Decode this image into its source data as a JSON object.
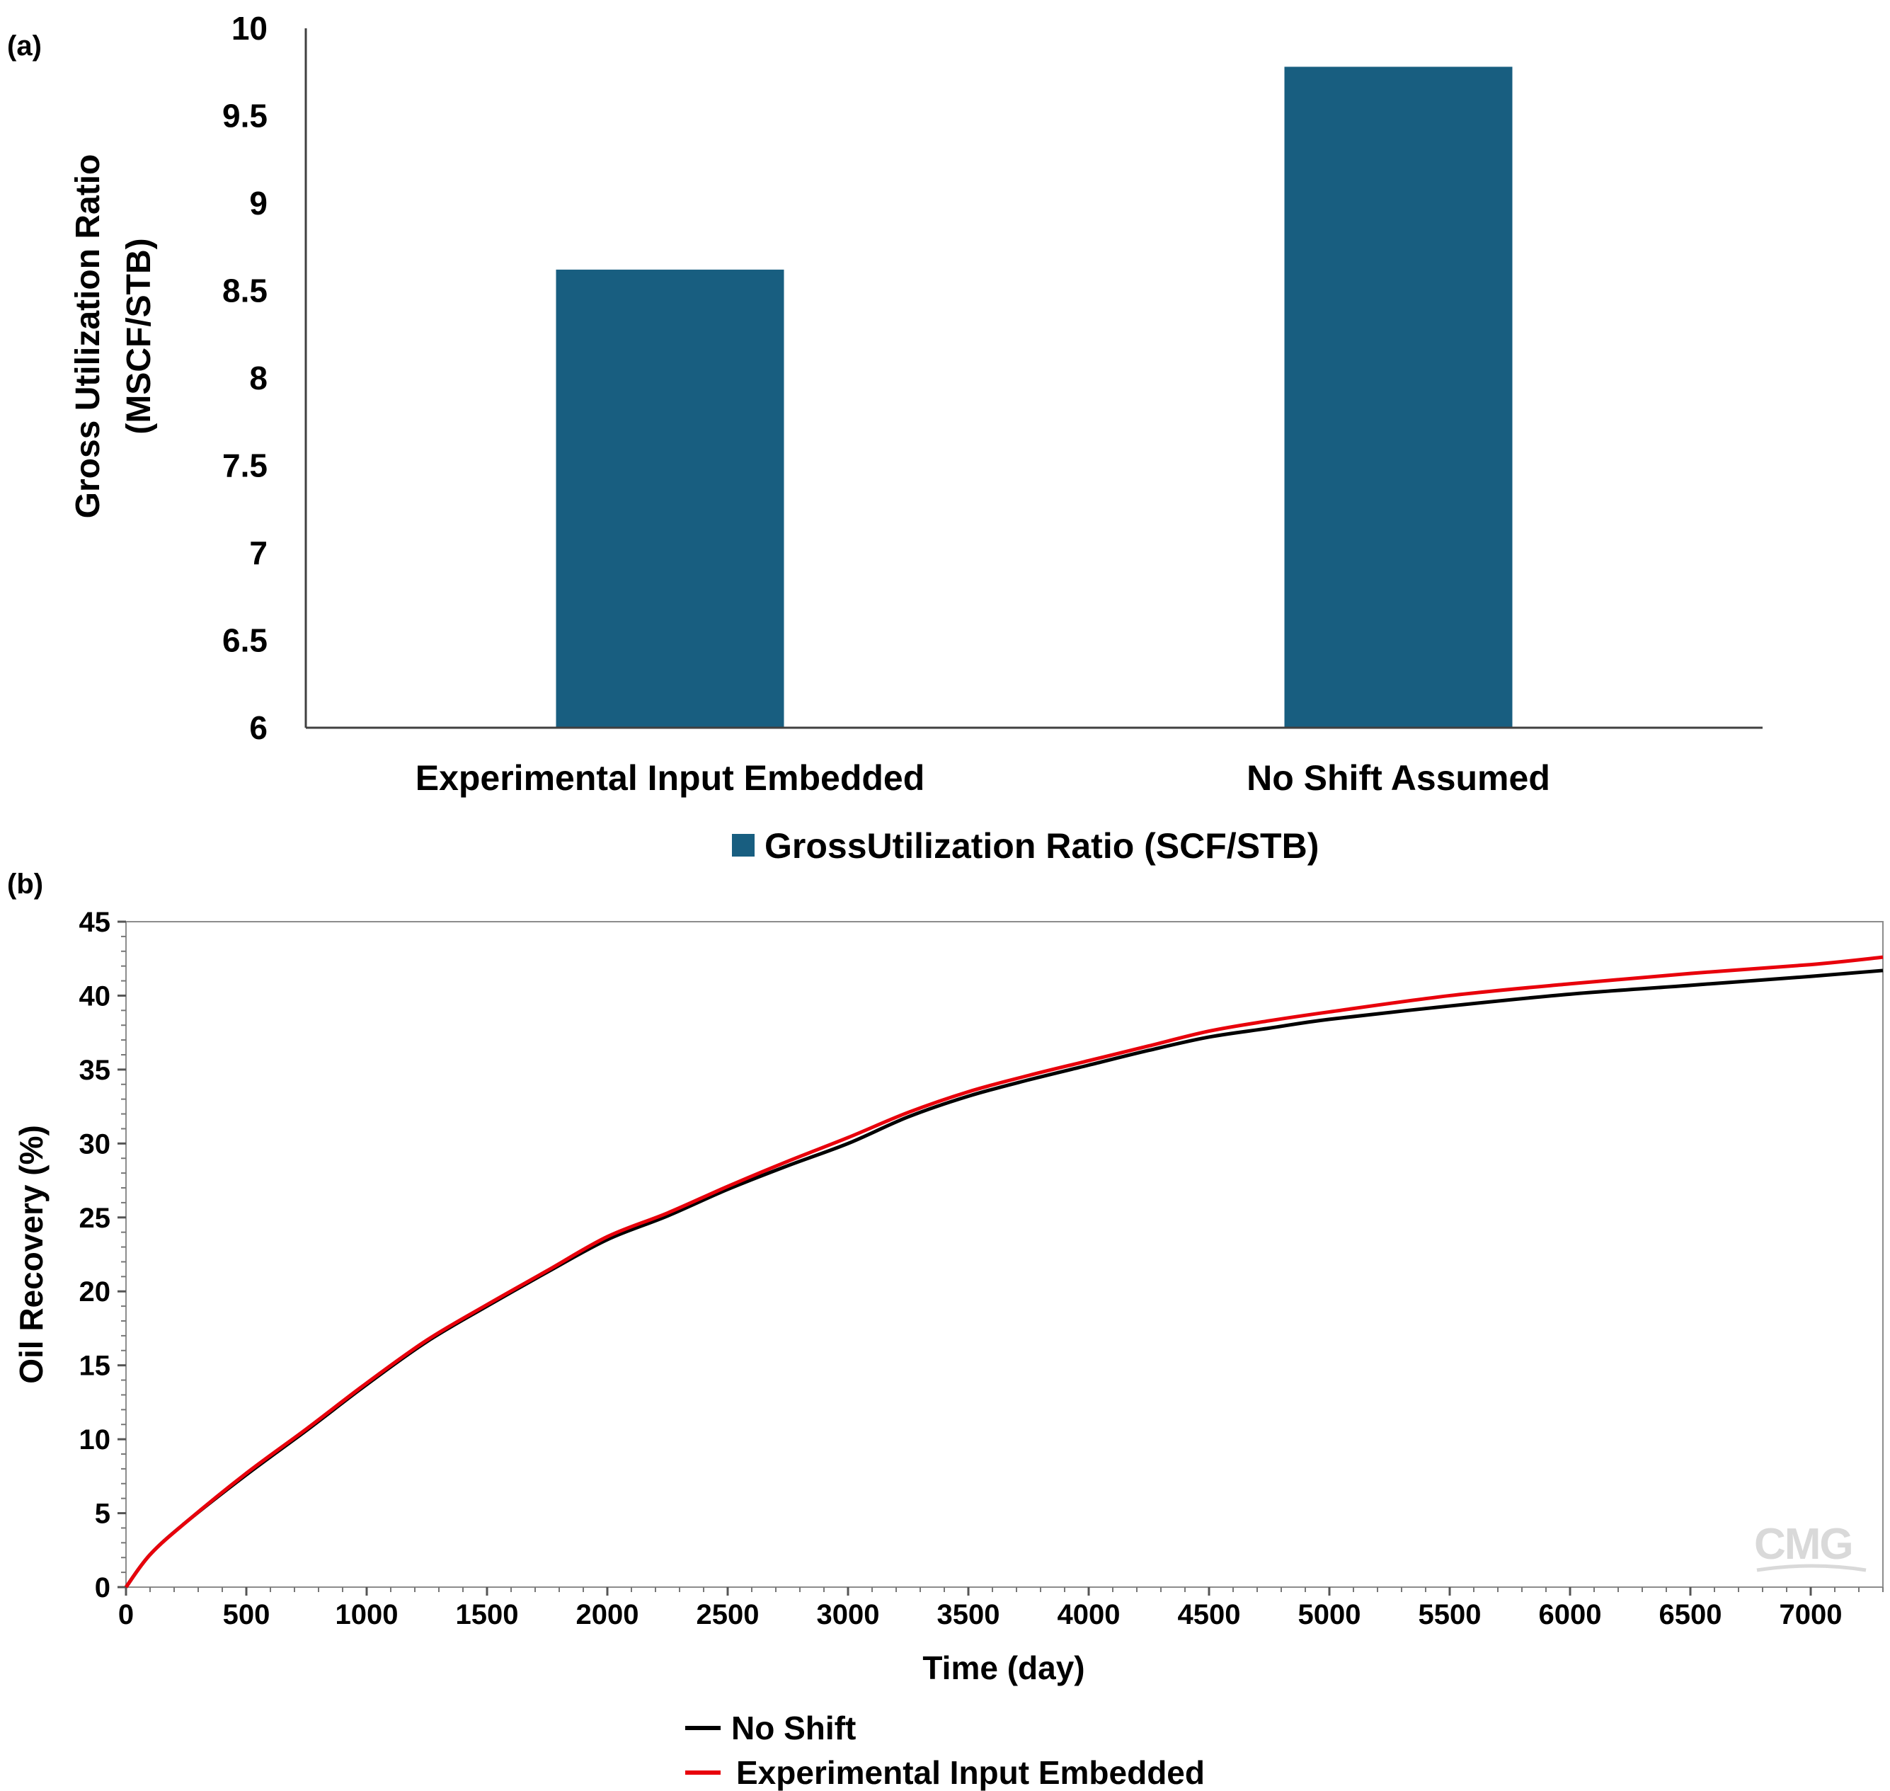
{
  "chart_data": [
    {
      "panel_label": "(a)",
      "type": "bar",
      "categories": [
        "Experimental Input Embedded",
        "No Shift Assumed"
      ],
      "series": [
        {
          "name": "GrossUtilization Ratio (SCF/STB)",
          "values": [
            8.62,
            9.78
          ],
          "color": "#185e80"
        }
      ],
      "ylabel_line1": "Gross Utilization Ratio",
      "ylabel_line2": "(MSCF/STB)",
      "xlabel": "",
      "ylim": [
        6,
        10
      ],
      "yticks": [
        "6",
        "6.5",
        "7",
        "7.5",
        "8",
        "8.5",
        "9",
        "9.5",
        "10"
      ],
      "grid": false,
      "legend_position": "bottom"
    },
    {
      "panel_label": "(b)",
      "type": "line",
      "xlabel": "Time (day)",
      "ylabel": "Oil Recovery (%)",
      "xlim": [
        0,
        7300
      ],
      "ylim": [
        0,
        45
      ],
      "xticks": [
        "0",
        "500",
        "1000",
        "1500",
        "2000",
        "2500",
        "3000",
        "3500",
        "4000",
        "4500",
        "5000",
        "5500",
        "6000",
        "6500",
        "7000"
      ],
      "yticks": [
        "0",
        "5",
        "10",
        "15",
        "20",
        "25",
        "30",
        "35",
        "40",
        "45"
      ],
      "grid": false,
      "legend_position": "bottom",
      "watermark": "CMG",
      "series": [
        {
          "name": "No Shift",
          "color": "#000000",
          "x": [
            0,
            100,
            250,
            500,
            750,
            1000,
            1250,
            1500,
            1750,
            2000,
            2250,
            2500,
            2750,
            3000,
            3250,
            3500,
            3750,
            4000,
            4250,
            4500,
            4750,
            5000,
            5500,
            6000,
            6500,
            7000,
            7300
          ],
          "y": [
            0,
            2.2,
            4.4,
            7.6,
            10.6,
            13.7,
            16.6,
            19.0,
            21.3,
            23.5,
            25.1,
            26.9,
            28.5,
            30.0,
            31.8,
            33.2,
            34.3,
            35.3,
            36.3,
            37.2,
            37.8,
            38.4,
            39.3,
            40.1,
            40.7,
            41.3,
            41.7
          ]
        },
        {
          "name": "Experimental Input Embedded",
          "color": "#e8000b",
          "x": [
            0,
            100,
            250,
            500,
            750,
            1000,
            1250,
            1500,
            1750,
            2000,
            2250,
            2500,
            2750,
            3000,
            3250,
            3500,
            3750,
            4000,
            4250,
            4500,
            4750,
            5000,
            5500,
            6000,
            6500,
            7000,
            7300
          ],
          "y": [
            0,
            2.2,
            4.4,
            7.7,
            10.7,
            13.8,
            16.7,
            19.1,
            21.4,
            23.7,
            25.3,
            27.1,
            28.8,
            30.4,
            32.1,
            33.5,
            34.6,
            35.6,
            36.6,
            37.6,
            38.3,
            38.9,
            40.0,
            40.8,
            41.5,
            42.1,
            42.6
          ]
        }
      ]
    }
  ]
}
